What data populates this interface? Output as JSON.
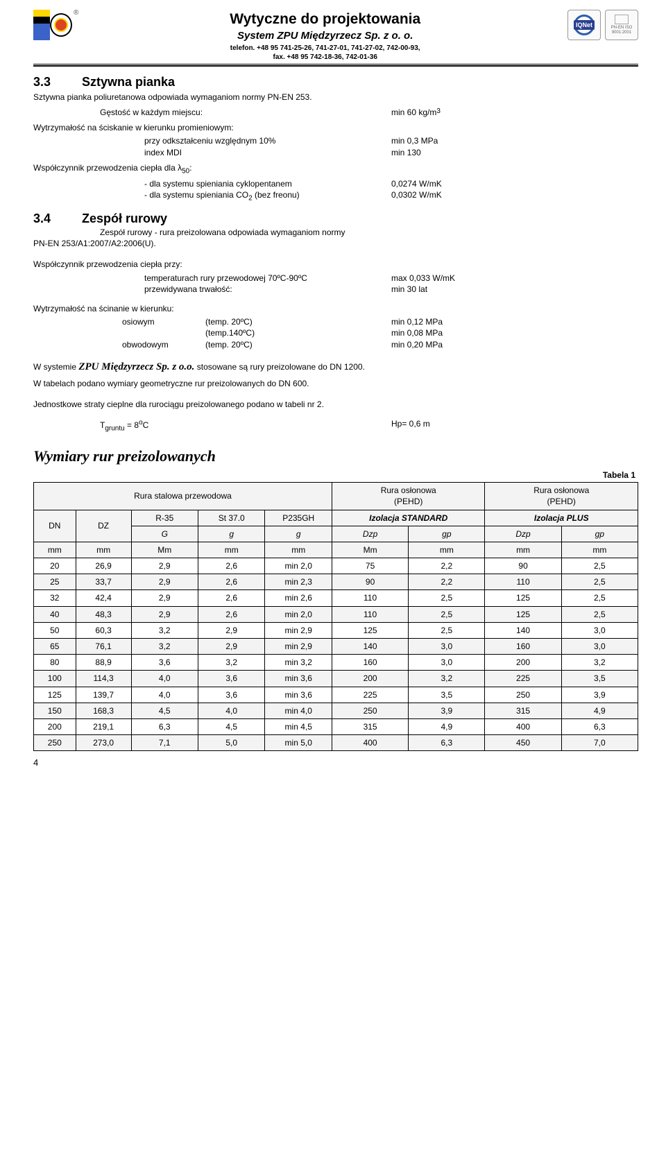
{
  "header": {
    "title1": "Wytyczne do projektowania",
    "title2": "System ZPU Międzyrzecz Sp. z o. o.",
    "tel": "telefon. +48 95 741-25-26, 741-27-01, 741-27-02, 742-00-93,",
    "fax": "fax. +48 95 742-18-36, 742-01-36",
    "reg": "®",
    "badge_iq": "IQNet",
    "badge_iso": "PN-EN ISO 9001:2001"
  },
  "sec33": {
    "num": "3.3",
    "title": "Sztywna pianka",
    "p1": "Sztywna pianka poliuretanowa odpowiada wymaganiom normy PN-EN 253.",
    "gk_k": "Gęstość w każdym miejscu:",
    "gk_v": "min 60 kg/m",
    "gk_sup": "3",
    "wytr": "Wytrzymałość na ściskanie w kierunku promieniowym:",
    "odk_k": "przy odkształceniu względnym 10%",
    "odk_v": "min 0,3 MPa",
    "mdi_k": "index MDI",
    "mdi_v": "min 130",
    "wsp": "Współczynnik przewodzenia ciepła dla λ",
    "wsp_sub": "50",
    "wsp_tail": ":",
    "b1_k": "- dla systemu spieniania cyklopentanem",
    "b1_v": "0,0274 W/mK",
    "b2_k": "- dla systemu spieniania CO",
    "b2_sub": "2",
    "b2_tail": " (bez freonu)",
    "b2_v": "0,0302 W/mK"
  },
  "sec34": {
    "num": "3.4",
    "title": "Zespół rurowy",
    "p1a": "Zespół rurowy - rura preizolowana odpowiada wymaganiom normy",
    "p1b": "PN-EN 253/A1:2007/A2:2006(U).",
    "wsp": "Współczynnik przewodzenia ciepła przy:",
    "t1_k": "temperaturach rury przewodowej 70ºC-90ºC",
    "t1_v": "max 0,033 W/mK",
    "t2_k": "przewidywana trwałość:",
    "t2_v": "min 30 lat",
    "wytr": "Wytrzymałość na ścinanie w kierunku:",
    "r1_c1": "osiowym",
    "r1_c2": "(temp. 20ºC)",
    "r1_c3": "min 0,12 MPa",
    "r2_c1": "",
    "r2_c2": "(temp.140ºC)",
    "r2_c3": "min 0,08 MPa",
    "r3_c1": "obwodowym",
    "r3_c2": "(temp. 20ºC)",
    "r3_c3": "min 0,20 MPa",
    "sys1": "W systemie ",
    "sys_company": "ZPU Międzyrzecz Sp. z o.o.",
    "sys2": " stosowane są rury preizolowane do DN 1200.",
    "sys3": "W tabelach podano wymiary geometryczne rur preizolowanych do DN 600.",
    "straty": "Jednostkowe straty cieplne dla rurociągu preizolowanego podano w tabeli nr 2.",
    "tg_k": "T",
    "tg_sub": "gruntu",
    "tg_eq": " = 8",
    "tg_sup": "o",
    "tg_c": "C",
    "hp": "Hp= 0,6 m"
  },
  "table": {
    "heading": "Wymiary rur preizolowanych",
    "tabela": "Tabela 1",
    "h_stal": "Rura stalowa przewodowa",
    "h_pehd": "Rura osłonowa\n(PEHD)",
    "h_pehd2": "Rura osłonowa\n(PEHD)",
    "h_dn": "DN",
    "h_dz": "DZ",
    "h_r35": "R-35",
    "h_st37": "St 37.0",
    "h_p235": "P235GH",
    "h_std": "Izolacja STANDARD",
    "h_plus": "Izolacja PLUS",
    "h_G": "G",
    "h_g": "g",
    "h_g2": "g",
    "h_dzp": "Dzp",
    "h_gp": "gp",
    "u_mm": "mm",
    "u_Mm": "Mm",
    "rows": [
      [
        "20",
        "26,9",
        "2,9",
        "2,6",
        "min 2,0",
        "75",
        "2,2",
        "90",
        "2,5"
      ],
      [
        "25",
        "33,7",
        "2,9",
        "2,6",
        "min 2,3",
        "90",
        "2,2",
        "110",
        "2,5"
      ],
      [
        "32",
        "42,4",
        "2,9",
        "2,6",
        "min 2,6",
        "110",
        "2,5",
        "125",
        "2,5"
      ],
      [
        "40",
        "48,3",
        "2,9",
        "2,6",
        "min 2,0",
        "110",
        "2,5",
        "125",
        "2,5"
      ],
      [
        "50",
        "60,3",
        "3,2",
        "2,9",
        "min 2,9",
        "125",
        "2,5",
        "140",
        "3,0"
      ],
      [
        "65",
        "76,1",
        "3,2",
        "2,9",
        "min 2,9",
        "140",
        "3,0",
        "160",
        "3,0"
      ],
      [
        "80",
        "88,9",
        "3,6",
        "3,2",
        "min 3,2",
        "160",
        "3,0",
        "200",
        "3,2"
      ],
      [
        "100",
        "114,3",
        "4,0",
        "3,6",
        "min 3,6",
        "200",
        "3,2",
        "225",
        "3,5"
      ],
      [
        "125",
        "139,7",
        "4,0",
        "3,6",
        "min 3,6",
        "225",
        "3,5",
        "250",
        "3,9"
      ],
      [
        "150",
        "168,3",
        "4,5",
        "4,0",
        "min 4,0",
        "250",
        "3,9",
        "315",
        "4,9"
      ],
      [
        "200",
        "219,1",
        "6,3",
        "4,5",
        "min 4,5",
        "315",
        "4,9",
        "400",
        "6,3"
      ],
      [
        "250",
        "273,0",
        "7,1",
        "5,0",
        "min 5,0",
        "400",
        "6,3",
        "450",
        "7,0"
      ]
    ]
  },
  "page_number": "4"
}
